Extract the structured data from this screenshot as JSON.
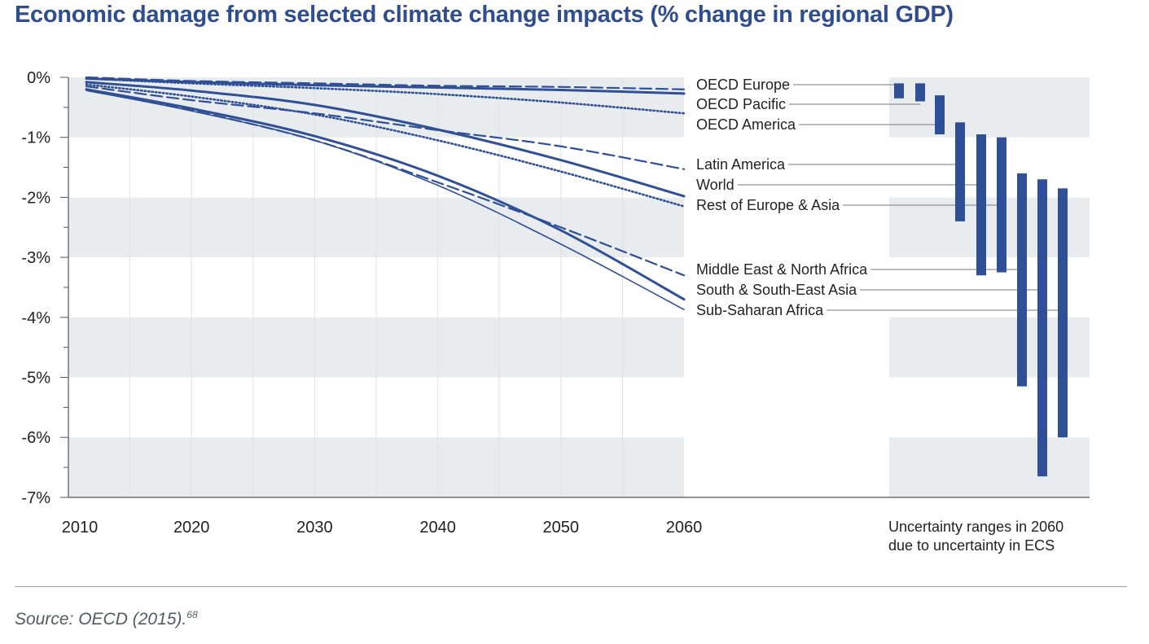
{
  "title": "Economic damage from selected climate change impacts (% change in regional GDP)",
  "source": "Source: OECD (2015).",
  "source_note": "68",
  "uncertainty_caption": [
    "Uncertainty ranges in 2060",
    "due to uncertainty in ECS"
  ],
  "colors": {
    "title": "#2f4d8f",
    "series": "#2f4f96",
    "band": "#e8ecef"
  },
  "chart_data": {
    "type": "line",
    "title": "Economic damage from selected climate change impacts (% change in regional GDP)",
    "xlabel": "",
    "ylabel": "",
    "x_ticks": [
      "2010",
      "2020",
      "2030",
      "2040",
      "2050",
      "2060"
    ],
    "y_ticks": [
      "0%",
      "-1%",
      "-2%",
      "-3%",
      "-4%",
      "-5%",
      "-6%",
      "-7%"
    ],
    "xlim": [
      2010,
      2060
    ],
    "ylim": [
      -7,
      0
    ],
    "grid": "alternating horizontal bands",
    "x": [
      2010,
      2020,
      2030,
      2040,
      2050,
      2060
    ],
    "series": [
      {
        "name": "OECD Europe",
        "style": "dashed",
        "values": [
          0.0,
          -0.06,
          -0.1,
          -0.14,
          -0.16,
          -0.2
        ],
        "range_2060": [
          -0.1,
          -0.35
        ]
      },
      {
        "name": "OECD Pacific",
        "style": "solid",
        "values": [
          -0.02,
          -0.08,
          -0.13,
          -0.17,
          -0.21,
          -0.27
        ],
        "range_2060": [
          -0.1,
          -0.4
        ]
      },
      {
        "name": "OECD America",
        "style": "dotted",
        "values": [
          -0.02,
          -0.1,
          -0.18,
          -0.28,
          -0.42,
          -0.6
        ],
        "range_2060": [
          -0.3,
          -0.95
        ]
      },
      {
        "name": "Latin America",
        "style": "dashed",
        "values": [
          -0.15,
          -0.38,
          -0.6,
          -0.88,
          -1.15,
          -1.53
        ],
        "range_2060": [
          -0.75,
          -2.4
        ]
      },
      {
        "name": "World",
        "style": "solid",
        "values": [
          -0.08,
          -0.22,
          -0.46,
          -0.87,
          -1.38,
          -1.98
        ],
        "range_2060": [
          -0.95,
          -3.3
        ]
      },
      {
        "name": "Rest of Europe & Asia",
        "style": "dotted",
        "values": [
          -0.12,
          -0.32,
          -0.62,
          -1.05,
          -1.57,
          -2.15
        ],
        "range_2060": [
          -1.0,
          -3.25
        ]
      },
      {
        "name": "Middle East & North Africa",
        "style": "dashed",
        "values": [
          -0.2,
          -0.55,
          -1.05,
          -1.75,
          -2.5,
          -3.3
        ],
        "range_2060": [
          -1.6,
          -5.15
        ]
      },
      {
        "name": "South & South-East Asia",
        "style": "solid",
        "values": [
          -0.2,
          -0.52,
          -0.98,
          -1.64,
          -2.55,
          -3.7
        ],
        "range_2060": [
          -1.7,
          -6.65
        ]
      },
      {
        "name": "Sub-Saharan Africa",
        "style": "thin",
        "values": [
          -0.22,
          -0.56,
          -1.05,
          -1.8,
          -2.78,
          -3.87
        ],
        "range_2060": [
          -1.85,
          -6.0
        ]
      }
    ]
  }
}
